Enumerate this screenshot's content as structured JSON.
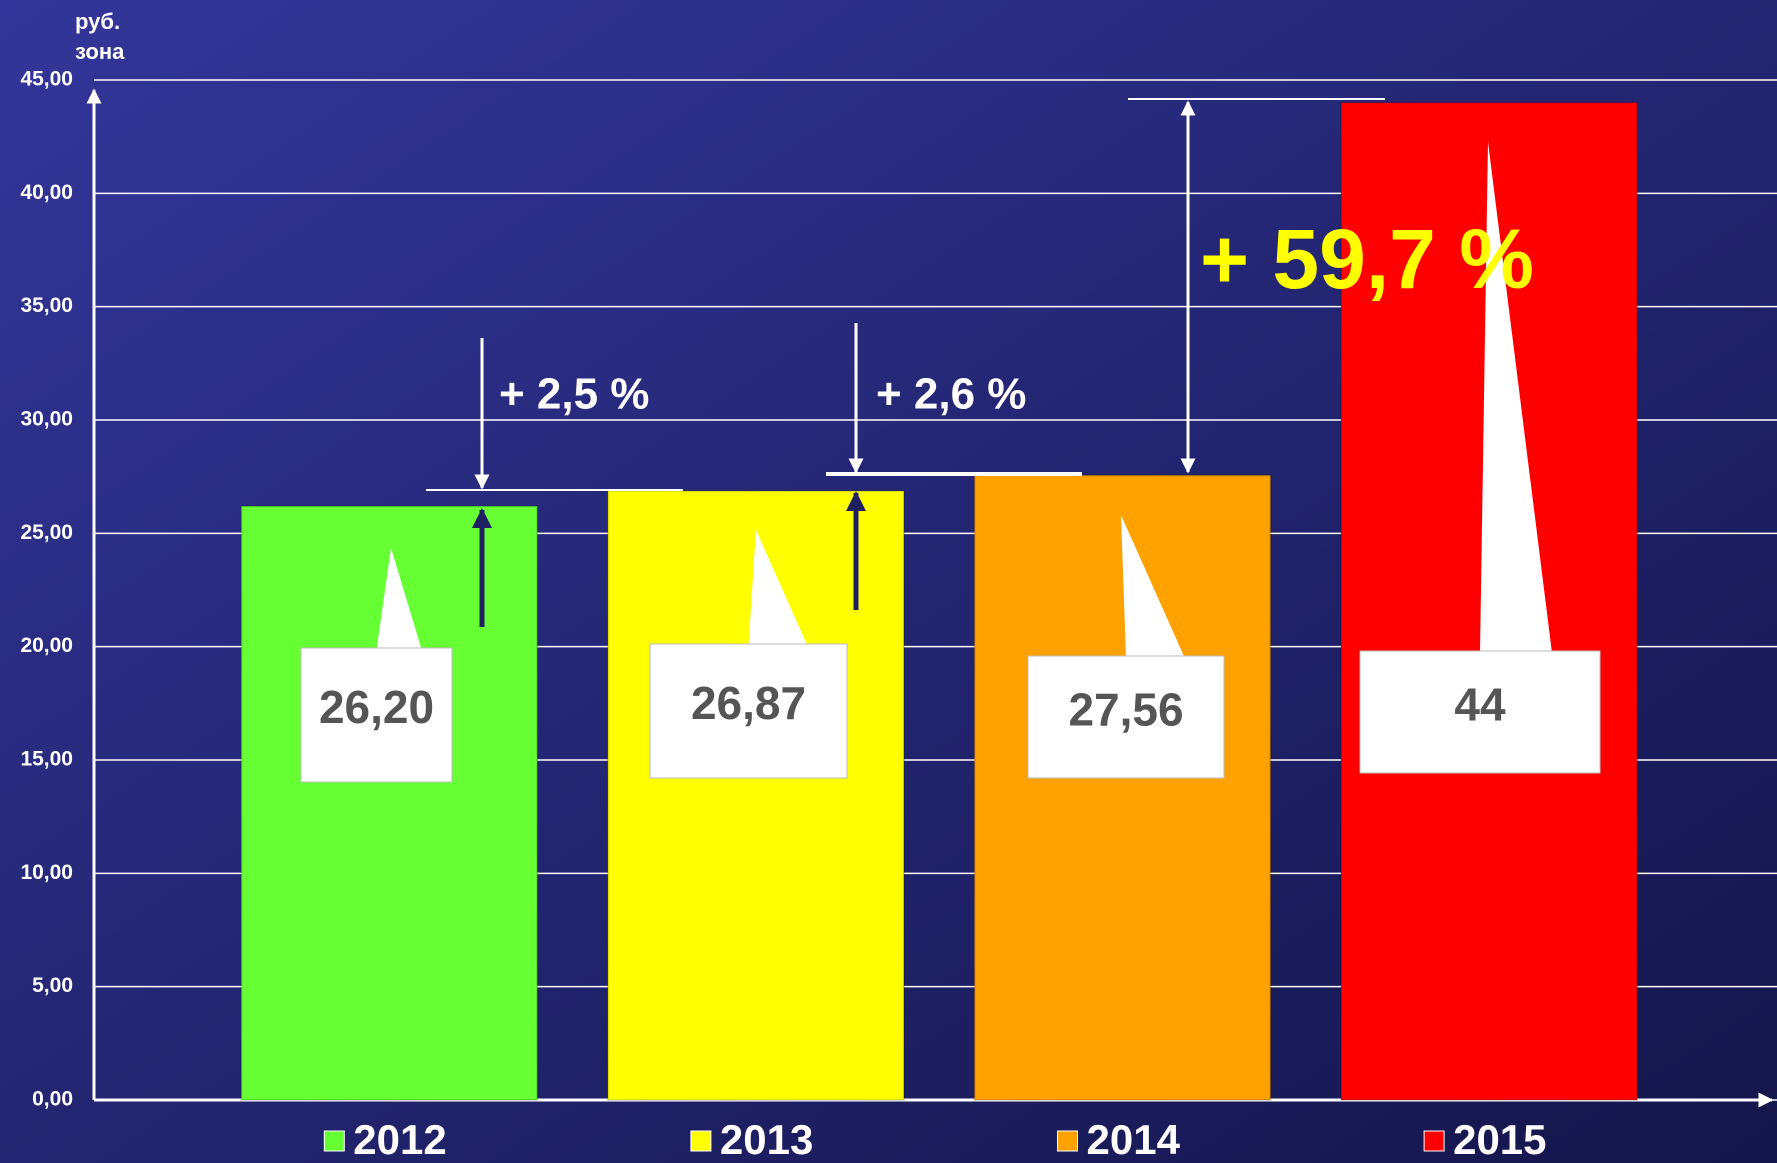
{
  "chart_data": {
    "type": "bar",
    "y_label_lines": [
      "руб.",
      "зона"
    ],
    "categories": [
      "2012",
      "2013",
      "2014",
      "2015"
    ],
    "values": [
      26.2,
      26.87,
      27.56,
      44
    ],
    "value_labels": [
      "26,20",
      "26,87",
      "27,56",
      "44"
    ],
    "colors": [
      "#66ff33",
      "#ffff00",
      "#ffa200",
      "#ff0000"
    ],
    "ylim": [
      0,
      45
    ],
    "yticks": [
      {
        "value": 0,
        "label": "0,00"
      },
      {
        "value": 5,
        "label": "5,00"
      },
      {
        "value": 10,
        "label": "10,00"
      },
      {
        "value": 15,
        "label": "15,00"
      },
      {
        "value": 20,
        "label": "20,00"
      },
      {
        "value": 25,
        "label": "25,00"
      },
      {
        "value": 30,
        "label": "30,00"
      },
      {
        "value": 35,
        "label": "35,00"
      },
      {
        "value": 40,
        "label": "40,00"
      },
      {
        "value": 45,
        "label": "45,00"
      }
    ],
    "grid": true,
    "annotations": [
      "+ 2,5 %",
      "+ 2,6 %",
      "+ 59,7 %"
    ]
  }
}
